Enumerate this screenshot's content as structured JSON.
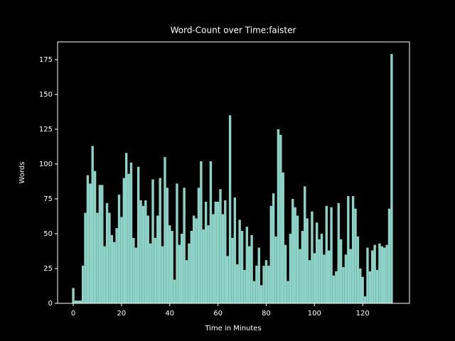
{
  "chart_data": {
    "type": "bar",
    "title": "Word-Count over Time:faister",
    "xlabel": "Time in Minutes",
    "ylabel": "Words",
    "x": [
      0,
      1,
      2,
      3,
      4,
      5,
      6,
      7,
      8,
      9,
      10,
      11,
      12,
      13,
      14,
      15,
      16,
      17,
      18,
      19,
      20,
      21,
      22,
      23,
      24,
      25,
      26,
      27,
      28,
      29,
      30,
      31,
      32,
      33,
      34,
      35,
      36,
      37,
      38,
      39,
      40,
      41,
      42,
      43,
      44,
      45,
      46,
      47,
      48,
      49,
      50,
      51,
      52,
      53,
      54,
      55,
      56,
      57,
      58,
      59,
      60,
      61,
      62,
      63,
      64,
      65,
      66,
      67,
      68,
      69,
      70,
      71,
      72,
      73,
      74,
      75,
      76,
      77,
      78,
      79,
      80,
      81,
      82,
      83,
      84,
      85,
      86,
      87,
      88,
      89,
      90,
      91,
      92,
      93,
      94,
      95,
      96,
      97,
      98,
      99,
      100,
      101,
      102,
      103,
      104,
      105,
      106,
      107,
      108,
      109,
      110,
      111,
      112,
      113,
      114,
      115,
      116,
      117,
      118,
      119,
      120,
      121,
      122,
      123,
      124,
      125,
      126,
      127,
      128,
      129,
      130,
      131,
      132
    ],
    "values": [
      11,
      2,
      2,
      2,
      27,
      65,
      92,
      86,
      113,
      95,
      65,
      85,
      85,
      41,
      72,
      65,
      49,
      44,
      54,
      78,
      62,
      90,
      108,
      93,
      101,
      47,
      40,
      98,
      74,
      70,
      74,
      63,
      43,
      89,
      47,
      63,
      90,
      41,
      105,
      83,
      56,
      52,
      17,
      86,
      42,
      50,
      83,
      31,
      43,
      52,
      63,
      61,
      83,
      102,
      53,
      73,
      56,
      102,
      64,
      73,
      73,
      82,
      64,
      74,
      34,
      135,
      47,
      76,
      28,
      60,
      52,
      24,
      55,
      41,
      49,
      16,
      27,
      40,
      13,
      27,
      31,
      27,
      70,
      79,
      48,
      125,
      121,
      94,
      42,
      16,
      50,
      75,
      69,
      63,
      39,
      52,
      84,
      61,
      31,
      66,
      36,
      58,
      46,
      50,
      35,
      70,
      38,
      69,
      20,
      23,
      72,
      46,
      26,
      35,
      77,
      39,
      77,
      68,
      48,
      25,
      19,
      5,
      40,
      23,
      38,
      42,
      24,
      43,
      41,
      40,
      42,
      68,
      179
    ],
    "color": "#8dd3c7",
    "xlim": [
      -6.5,
      139.4
    ],
    "ylim": [
      0,
      187.7
    ],
    "xticks": [
      0,
      20,
      40,
      60,
      80,
      100,
      120
    ],
    "yticks": [
      0,
      25,
      50,
      75,
      100,
      125,
      150,
      175
    ]
  }
}
